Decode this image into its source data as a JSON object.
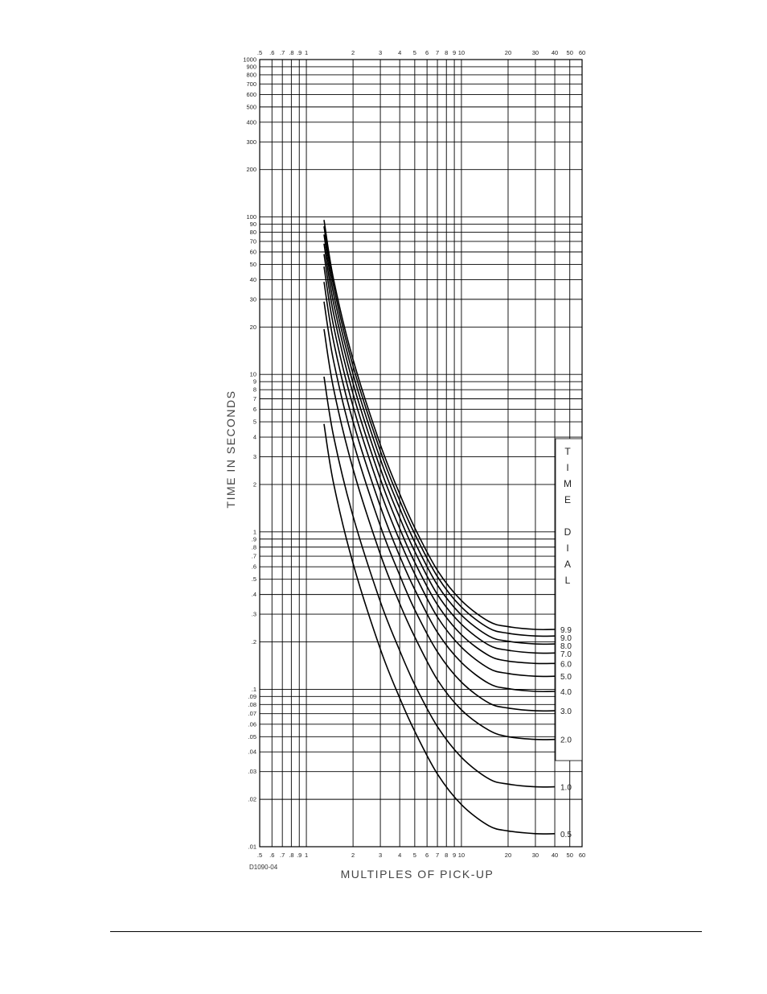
{
  "chart_data": {
    "type": "line",
    "scale": {
      "x": "log",
      "y": "log"
    },
    "xlim": [
      0.5,
      60
    ],
    "ylim": [
      0.01,
      1000
    ],
    "grid": true,
    "xlabel": "MULTIPLES OF PICK-UP",
    "ylabel": "TIME IN SECONDS",
    "drawing_id": "D1090-04",
    "x_tick_labels": [
      ".5",
      ".6",
      ".7",
      ".8",
      ".9",
      "1",
      "2",
      "3",
      "4",
      "5",
      "6",
      "7",
      "8",
      "9",
      "10",
      "20",
      "30",
      "40",
      "50",
      "60"
    ],
    "x_tick_values": [
      0.5,
      0.6,
      0.7,
      0.8,
      0.9,
      1,
      2,
      3,
      4,
      5,
      6,
      7,
      8,
      9,
      10,
      20,
      30,
      40,
      50,
      60
    ],
    "y_tick_labels": [
      "1000",
      "900",
      "800",
      "700",
      "600",
      "500",
      "400",
      "300",
      "200",
      "100",
      "90",
      "80",
      "70",
      "60",
      "50",
      "40",
      "30",
      "20",
      "10",
      "9",
      "8",
      "7",
      "6",
      "5",
      "4",
      "3",
      "2",
      "1",
      ".9",
      ".8",
      ".7",
      ".6",
      ".5",
      ".4",
      ".3",
      ".2",
      ".1",
      ".09",
      ".08",
      ".07",
      ".06",
      ".05",
      ".04",
      ".03",
      ".02",
      ".01"
    ],
    "y_tick_values": [
      1000,
      900,
      800,
      700,
      600,
      500,
      400,
      300,
      200,
      100,
      90,
      80,
      70,
      60,
      50,
      40,
      30,
      20,
      10,
      9,
      8,
      7,
      6,
      5,
      4,
      3,
      2,
      1,
      0.9,
      0.8,
      0.7,
      0.6,
      0.5,
      0.4,
      0.3,
      0.2,
      0.1,
      0.09,
      0.08,
      0.07,
      0.06,
      0.05,
      0.04,
      0.03,
      0.02,
      0.01
    ],
    "legend": {
      "title_letters": [
        "T",
        "I",
        "M",
        "E",
        "",
        "D",
        "I",
        "A",
        "L"
      ],
      "position": "right"
    },
    "x": [
      1.3,
      1.5,
      2,
      3,
      4,
      5,
      7,
      10,
      15,
      20,
      30,
      40
    ],
    "series": [
      {
        "name": "9.9",
        "values": [
          95.8,
          39.9,
          12.45,
          3.58,
          1.74,
          1.06,
          0.57,
          0.366,
          0.27,
          0.25,
          0.24,
          0.24
        ]
      },
      {
        "name": "9.0",
        "values": [
          87.1,
          36.3,
          11.3,
          3.26,
          1.58,
          0.97,
          0.52,
          0.333,
          0.245,
          0.227,
          0.218,
          0.218
        ]
      },
      {
        "name": "8.0",
        "values": [
          77.4,
          32.3,
          10.05,
          2.9,
          1.41,
          0.86,
          0.46,
          0.296,
          0.218,
          0.202,
          0.194,
          0.194
        ]
      },
      {
        "name": "7.0",
        "values": [
          67.7,
          28.2,
          8.8,
          2.53,
          1.23,
          0.75,
          0.4,
          0.259,
          0.191,
          0.177,
          0.17,
          0.17
        ]
      },
      {
        "name": "6.0",
        "values": [
          58.1,
          24.2,
          7.54,
          2.17,
          1.05,
          0.64,
          0.345,
          0.222,
          0.164,
          0.151,
          0.146,
          0.146
        ]
      },
      {
        "name": "5.0",
        "values": [
          48.4,
          20.2,
          6.28,
          1.81,
          0.88,
          0.54,
          0.288,
          0.185,
          0.136,
          0.126,
          0.121,
          0.121
        ]
      },
      {
        "name": "4.0",
        "values": [
          38.7,
          16.1,
          5.03,
          1.45,
          0.7,
          0.43,
          0.23,
          0.148,
          0.109,
          0.101,
          0.097,
          0.097
        ]
      },
      {
        "name": "3.0",
        "values": [
          29.0,
          12.1,
          3.77,
          1.09,
          0.53,
          0.32,
          0.173,
          0.111,
          0.082,
          0.076,
          0.073,
          0.073
        ]
      },
      {
        "name": "2.0",
        "values": [
          19.4,
          8.07,
          2.51,
          0.72,
          0.35,
          0.215,
          0.115,
          0.074,
          0.055,
          0.05,
          0.048,
          0.048
        ]
      },
      {
        "name": "1.0",
        "values": [
          9.68,
          4.03,
          1.26,
          0.36,
          0.176,
          0.107,
          0.058,
          0.037,
          0.027,
          0.025,
          0.024,
          0.024
        ]
      },
      {
        "name": "0.5",
        "values": [
          4.84,
          2.02,
          0.63,
          0.18,
          0.088,
          0.054,
          0.029,
          0.0185,
          0.0136,
          0.0126,
          0.0121,
          0.0121
        ]
      }
    ]
  }
}
